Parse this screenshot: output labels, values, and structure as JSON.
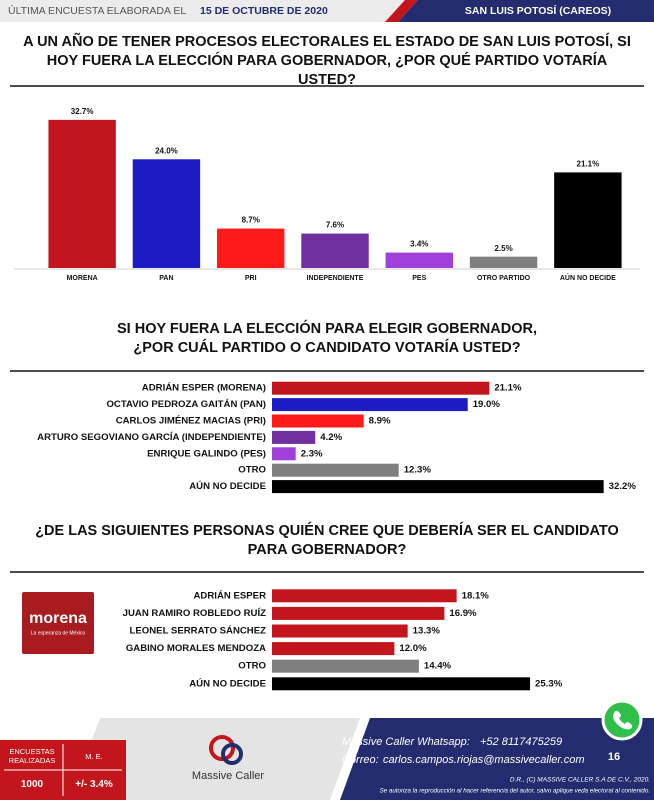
{
  "header": {
    "left": "ÚLTIMA ENCUESTA ELABORADA EL",
    "date": "15 DE OCTUBRE DE 2020",
    "right": "SAN LUIS POTOSÍ (CAREOS)"
  },
  "chart_data": [
    {
      "type": "bar",
      "title": "A UN AÑO DE TENER PROCESOS ELECTORALES EL ESTADO DE SAN LUIS POTOSÍ, SI HOY FUERA LA ELECCIÓN PARA GOBERNADOR, ¿POR QUÉ PARTIDO VOTARÍA USTED?",
      "categories": [
        "MORENA",
        "PAN",
        "PRI",
        "INDEPENDIENTE",
        "PES",
        "OTRO PARTIDO",
        "AÚN NO DECIDE"
      ],
      "values": [
        32.7,
        24.0,
        8.7,
        7.6,
        3.4,
        2.5,
        21.1
      ],
      "value_labels": [
        "32.7%",
        "24.0%",
        "8.7%",
        "7.6%",
        "3.4%",
        "2.5%",
        "21.1%"
      ],
      "colors": [
        "#c3161c",
        "#1c1cc4",
        "#ff1a1a",
        "#7030a0",
        "#a040d8",
        "#7f7f7f",
        "#000000"
      ]
    },
    {
      "type": "barh",
      "title": "SI HOY FUERA LA ELECCIÓN PARA ELEGIR GOBERNADOR, ¿POR CUÁL PARTIDO O CANDIDATO VOTARÍA USTED?",
      "categories": [
        "ADRIÁN ESPER (MORENA)",
        "OCTAVIO PEDROZA GAITÁN (PAN)",
        "CARLOS JIMÉNEZ MACIAS (PRI)",
        "ARTURO SEGOVIANO GARCÍA (INDEPENDIENTE)",
        "ENRIQUE GALINDO (PES)",
        "OTRO",
        "AÚN NO DECIDE"
      ],
      "values": [
        21.1,
        19.0,
        8.9,
        4.2,
        2.3,
        12.3,
        32.2
      ],
      "value_labels": [
        "21.1%",
        "19.0%",
        "8.9%",
        "4.2%",
        "2.3%",
        "12.3%",
        "32.2%"
      ],
      "colors": [
        "#c3161c",
        "#1c1cc4",
        "#ff1a1a",
        "#7030a0",
        "#a040d8",
        "#7f7f7f",
        "#000000"
      ]
    },
    {
      "type": "barh",
      "title": "¿DE LAS SIGUIENTES PERSONAS QUIÉN CREE QUE DEBERÍA SER EL CANDIDATO PARA GOBERNADOR?",
      "categories": [
        "ADRIÁN ESPER",
        "JUAN RAMIRO ROBLEDO RUÍZ",
        "LEONEL SERRATO SÁNCHEZ",
        "GABINO MORALES MENDOZA",
        "OTRO",
        "AÚN NO DECIDE"
      ],
      "values": [
        18.1,
        16.9,
        13.3,
        12.0,
        14.4,
        25.3
      ],
      "value_labels": [
        "18.1%",
        "16.9%",
        "13.3%",
        "12.0%",
        "14.4%",
        "25.3%"
      ],
      "colors": [
        "#c3161c",
        "#c3161c",
        "#c3161c",
        "#c3161c",
        "#7f7f7f",
        "#000000"
      ]
    }
  ],
  "logo": {
    "name": "morena",
    "tagline": "La esperanza de México"
  },
  "footer": {
    "table": {
      "headers": [
        "ENCUESTAS REALIZADAS",
        "M. E."
      ],
      "values": [
        "1000",
        "+/- 3.4%"
      ]
    },
    "brand": "Massive Caller",
    "whatsapp_label": "Massive Caller Whatsapp:",
    "whatsapp": "+52 8117475259",
    "email_label": "Correo:",
    "email": "carlos.campos.riojas@massivecaller.com",
    "page": "16",
    "copyright": "D.R., (C) MASSIVE CALLER S.A DE C.V., 2020.",
    "notice": "Se autoriza la reproducción al hacer referencia del autor, salvo aplique veda electoral al contenido."
  }
}
